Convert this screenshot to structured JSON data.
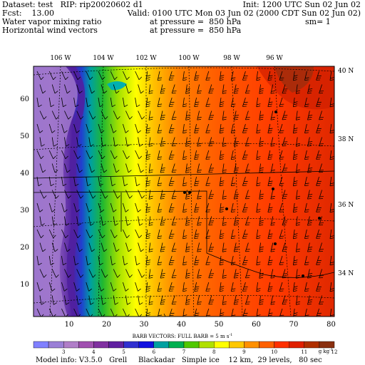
{
  "header": {
    "line1_left": "Dataset: test   RIP: rip20020602 d1",
    "line1_right": "Init: 1200 UTC Sun 02 Jun 02",
    "line2_left": "Fcst:    13.00",
    "line2_right": "Valid: 0100 UTC Mon 03 Jun 02 (2000 CDT Sun 02 Jun 02)",
    "line3_left": "Water vapor mixing ratio",
    "line3_mid": "at pressure =  850 hPa",
    "line3_right": "sm= 1",
    "line4_left": "Horizontal wind vectors",
    "line4_mid": "at pressure =  850 hPa"
  },
  "map": {
    "lon_labels": [
      "106 W",
      "104 W",
      "102 W",
      "100 W",
      "98 W",
      "96 W"
    ],
    "lat_labels": [
      "40 N",
      "38 N",
      "36 N",
      "34 N"
    ],
    "x_ticks": [
      "10",
      "20",
      "30",
      "40",
      "50",
      "60",
      "70",
      "80"
    ],
    "y_ticks": [
      "10",
      "20",
      "30",
      "40",
      "50",
      "60"
    ],
    "barb_caption": "BARB VECTORS:  FULL BARB = 5 m s",
    "barb_caption_sup": "-1"
  },
  "colorbar": {
    "colors": [
      "#8080ff",
      "#9a7fd6",
      "#b07ec8",
      "#a050b0",
      "#8030a0",
      "#6020a0",
      "#3030d0",
      "#1010e0",
      "#00a0a0",
      "#00b050",
      "#50c800",
      "#b0e000",
      "#ffff00",
      "#ffc800",
      "#ff9000",
      "#ff6000",
      "#ff3000",
      "#e02000",
      "#b03000",
      "#8a3010"
    ],
    "labels": [
      "3",
      "4",
      "5",
      "6",
      "7",
      "8",
      "9",
      "10",
      "11",
      "12"
    ],
    "unit": "g kg",
    "unit_sup": "-1"
  },
  "footer": {
    "model_info": "Model info: V3.5.0   Grell     Blackadar   Simple ice    12 km,  29 levels,   80 sec"
  }
}
